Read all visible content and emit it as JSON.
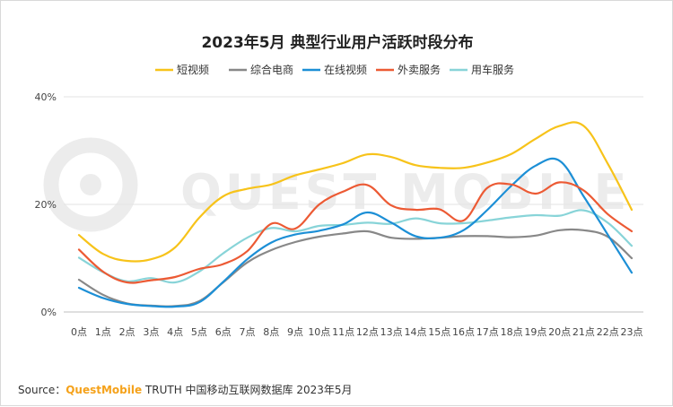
{
  "source": {
    "label": "Source：",
    "brand": "QuestMobile",
    "text": " TRUTH 中国移动互联网数据库 2023年5月"
  },
  "watermark": "QUEST MOBILE",
  "chart_data": {
    "type": "line",
    "title": "2023年5月 典型行业用户活跃时段分布",
    "xlabel": "",
    "ylabel": "",
    "ylim": [
      0,
      40
    ],
    "yticks": [
      "0%",
      "20%",
      "40%"
    ],
    "grid": "horizontal",
    "legend_position": "top",
    "categories": [
      "0点",
      "1点",
      "2点",
      "3点",
      "4点",
      "5点",
      "6点",
      "7点",
      "8点",
      "9点",
      "10点",
      "11点",
      "12点",
      "13点",
      "14点",
      "15点",
      "16点",
      "17点",
      "18点",
      "19点",
      "20点",
      "21点",
      "22点",
      "23点"
    ],
    "series": [
      {
        "name": "短视频",
        "color": "#f7c31a",
        "values": [
          14.3,
          10.8,
          9.5,
          9.8,
          12.0,
          17.5,
          21.5,
          22.9,
          23.7,
          25.4,
          26.5,
          27.7,
          29.3,
          28.8,
          27.3,
          26.8,
          26.8,
          27.8,
          29.4,
          32.2,
          34.6,
          34.6,
          27.6,
          19.0
        ]
      },
      {
        "name": "综合电商",
        "color": "#888888",
        "values": [
          6.0,
          3.2,
          1.6,
          1.2,
          1.1,
          2.0,
          5.5,
          9.2,
          11.5,
          13.0,
          14.0,
          14.6,
          15.0,
          13.8,
          13.6,
          13.8,
          14.1,
          14.1,
          13.9,
          14.2,
          15.2,
          15.2,
          14.0,
          10.0
        ]
      },
      {
        "name": "在线视频",
        "color": "#1c8fd6",
        "values": [
          4.5,
          2.6,
          1.5,
          1.1,
          1.0,
          1.8,
          5.6,
          9.8,
          12.9,
          14.4,
          15.1,
          16.3,
          18.5,
          16.6,
          14.1,
          13.8,
          15.2,
          19.0,
          23.5,
          27.2,
          28.1,
          21.5,
          14.4,
          7.3
        ]
      },
      {
        "name": "外卖服务",
        "color": "#ec5a34",
        "values": [
          11.6,
          7.5,
          5.5,
          5.9,
          6.5,
          8.0,
          8.9,
          11.3,
          16.4,
          15.5,
          20.0,
          22.4,
          23.6,
          19.8,
          19.0,
          19.1,
          17.0,
          23.1,
          23.7,
          22.0,
          24.1,
          22.6,
          18.2,
          15.0
        ]
      },
      {
        "name": "用车服务",
        "color": "#88d4d8",
        "values": [
          10.1,
          7.4,
          5.7,
          6.3,
          5.5,
          7.5,
          10.9,
          13.8,
          15.6,
          15.0,
          16.0,
          16.2,
          16.6,
          16.4,
          17.4,
          16.5,
          16.5,
          17.0,
          17.6,
          18.0,
          17.9,
          18.9,
          16.6,
          12.3
        ]
      }
    ]
  }
}
